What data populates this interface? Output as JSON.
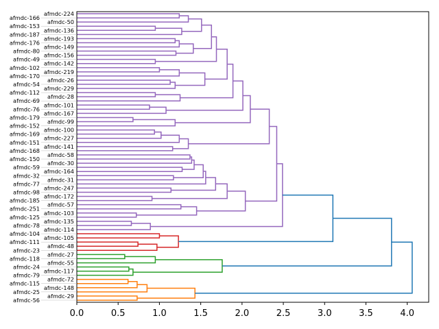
{
  "chart_data": {
    "type": "dendrogram",
    "orientation": "left",
    "title": "",
    "xlabel": "",
    "ylabel": "",
    "xlim": [
      0,
      4.26
    ],
    "x_ticks": [
      "0.0",
      "0.5",
      "1.0",
      "1.5",
      "2.0",
      "2.5",
      "3.0",
      "3.5",
      "4.0"
    ],
    "grid": false,
    "palette": {
      "purple": "#9467bd",
      "red": "#d62728",
      "green": "#2ca02c",
      "orange": "#ff7f0e",
      "above_threshold": "#1f77b4"
    },
    "leaves": [
      "afmdc-224",
      "afmdc-166",
      "afmdc-50",
      "afmdc-153",
      "afmdc-136",
      "afmdc-187",
      "afmdc-193",
      "afmdc-176",
      "afmdc-149",
      "afmdc-80",
      "afmdc-156",
      "afmdc-49",
      "afmdc-142",
      "afmdc-102",
      "afmdc-219",
      "afmdc-170",
      "afmdc-26",
      "afmdc-54",
      "afmdc-229",
      "afmdc-112",
      "afmdc-28",
      "afmdc-69",
      "afmdc-101",
      "afmdc-76",
      "afmdc-167",
      "afmdc-179",
      "afmdc-99",
      "afmdc-152",
      "afmdc-100",
      "afmdc-169",
      "afmdc-227",
      "afmdc-151",
      "afmdc-141",
      "afmdc-168",
      "afmdc-58",
      "afmdc-150",
      "afmdc-30",
      "afmdc-59",
      "afmdc-164",
      "afmdc-32",
      "afmdc-31",
      "afmdc-77",
      "afmdc-247",
      "afmdc-98",
      "afmdc-172",
      "afmdc-185",
      "afmdc-57",
      "afmdc-251",
      "afmdc-103",
      "afmdc-125",
      "afmdc-135",
      "afmdc-78",
      "afmdc-114",
      "afmdc-104",
      "afmdc-105",
      "afmdc-111",
      "afmdc-48",
      "afmdc-23",
      "afmdc-27",
      "afmdc-118",
      "afmdc-55",
      "afmdc-24",
      "afmdc-117",
      "afmdc-79",
      "afmdc-72",
      "afmdc-115",
      "afmdc-148",
      "afmdc-25",
      "afmdc-29",
      "afmdc-56"
    ],
    "merges": [
      [
        0,
        1,
        1.24,
        "purple"
      ],
      [
        70,
        2,
        1.35,
        "purple"
      ],
      [
        3,
        4,
        0.95,
        "purple"
      ],
      [
        72,
        5,
        1.27,
        "purple"
      ],
      [
        71,
        73,
        1.51,
        "purple"
      ],
      [
        6,
        7,
        1.19,
        "purple"
      ],
      [
        75,
        8,
        1.24,
        "purple"
      ],
      [
        9,
        10,
        1.2,
        "purple"
      ],
      [
        76,
        77,
        1.41,
        "purple"
      ],
      [
        74,
        78,
        1.63,
        "purple"
      ],
      [
        11,
        12,
        0.95,
        "purple"
      ],
      [
        79,
        80,
        1.69,
        "purple"
      ],
      [
        13,
        14,
        1.0,
        "purple"
      ],
      [
        82,
        15,
        1.24,
        "purple"
      ],
      [
        16,
        17,
        1.13,
        "purple"
      ],
      [
        84,
        18,
        1.19,
        "purple"
      ],
      [
        83,
        85,
        1.55,
        "purple"
      ],
      [
        81,
        86,
        1.82,
        "purple"
      ],
      [
        19,
        20,
        0.95,
        "purple"
      ],
      [
        88,
        21,
        1.25,
        "purple"
      ],
      [
        87,
        89,
        1.89,
        "purple"
      ],
      [
        22,
        23,
        0.88,
        "purple"
      ],
      [
        91,
        24,
        1.08,
        "purple"
      ],
      [
        90,
        92,
        2.01,
        "purple"
      ],
      [
        25,
        26,
        0.68,
        "purple"
      ],
      [
        94,
        27,
        1.19,
        "purple"
      ],
      [
        93,
        95,
        2.1,
        "purple"
      ],
      [
        28,
        29,
        0.94,
        "purple"
      ],
      [
        97,
        30,
        1.02,
        "purple"
      ],
      [
        98,
        31,
        1.24,
        "purple"
      ],
      [
        32,
        33,
        1.16,
        "purple"
      ],
      [
        99,
        100,
        1.35,
        "purple"
      ],
      [
        96,
        101,
        2.33,
        "purple"
      ],
      [
        34,
        35,
        1.37,
        "purple"
      ],
      [
        103,
        36,
        1.39,
        "purple"
      ],
      [
        37,
        38,
        1.275,
        "purple"
      ],
      [
        104,
        105,
        1.42,
        "purple"
      ],
      [
        39,
        40,
        1.17,
        "purple"
      ],
      [
        106,
        107,
        1.53,
        "purple"
      ],
      [
        108,
        41,
        1.56,
        "purple"
      ],
      [
        42,
        43,
        1.14,
        "purple"
      ],
      [
        109,
        110,
        1.68,
        "purple"
      ],
      [
        44,
        45,
        0.91,
        "purple"
      ],
      [
        111,
        112,
        1.82,
        "purple"
      ],
      [
        46,
        47,
        1.26,
        "purple"
      ],
      [
        48,
        49,
        0.72,
        "purple"
      ],
      [
        114,
        115,
        1.45,
        "purple"
      ],
      [
        113,
        116,
        2.04,
        "purple"
      ],
      [
        102,
        117,
        2.42,
        "purple"
      ],
      [
        50,
        51,
        0.66,
        "purple"
      ],
      [
        119,
        52,
        0.89,
        "purple"
      ],
      [
        118,
        120,
        2.49,
        "purple"
      ],
      [
        53,
        54,
        1.0,
        "red"
      ],
      [
        55,
        56,
        0.74,
        "red"
      ],
      [
        123,
        57,
        0.97,
        "red"
      ],
      [
        122,
        124,
        1.23,
        "red"
      ],
      [
        121,
        125,
        3.1,
        "above_threshold"
      ],
      [
        58,
        59,
        0.58,
        "green"
      ],
      [
        127,
        60,
        0.95,
        "green"
      ],
      [
        61,
        62,
        0.63,
        "green"
      ],
      [
        129,
        63,
        0.68,
        "green"
      ],
      [
        128,
        130,
        1.76,
        "green"
      ],
      [
        126,
        131,
        3.81,
        "above_threshold"
      ],
      [
        64,
        65,
        0.62,
        "orange"
      ],
      [
        133,
        66,
        0.73,
        "orange"
      ],
      [
        134,
        67,
        0.85,
        "orange"
      ],
      [
        68,
        69,
        0.73,
        "orange"
      ],
      [
        135,
        136,
        1.43,
        "orange"
      ],
      [
        132,
        137,
        4.06,
        "above_threshold"
      ]
    ]
  }
}
